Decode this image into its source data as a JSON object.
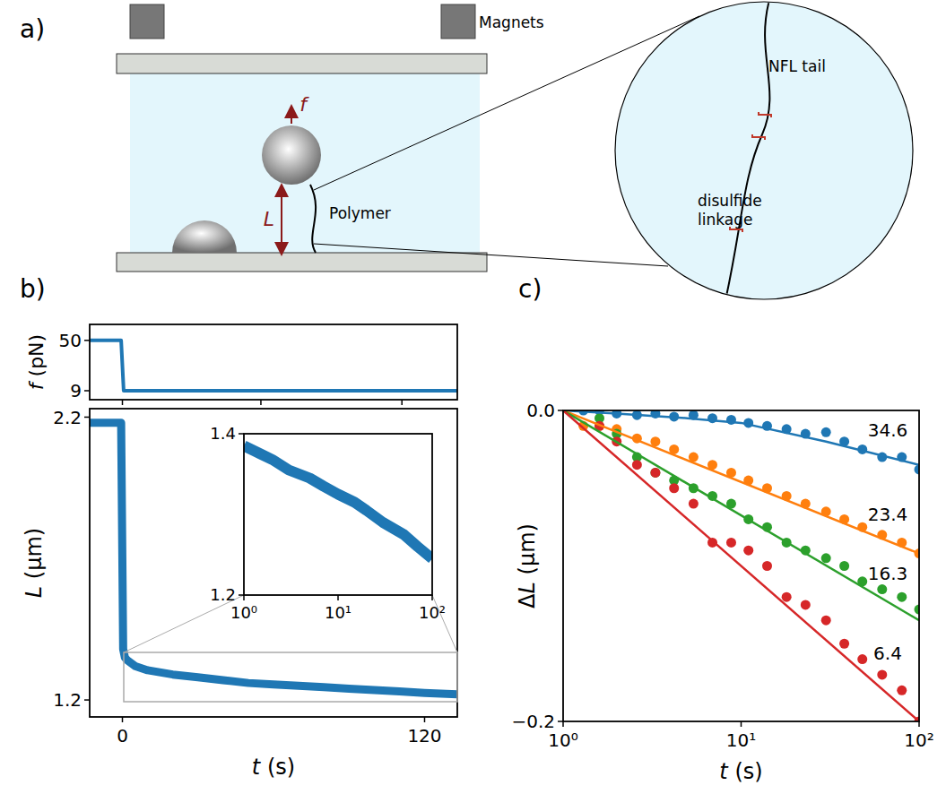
{
  "panels": [
    "a)",
    "b)",
    "c)"
  ],
  "diagram": {
    "magnets": "Magnets",
    "force": "f",
    "length": "L",
    "polymer": "Polymer",
    "tail": "NFL tail",
    "linkage": "disulfide linkage"
  },
  "chart_data": [
    {
      "type": "line",
      "y_label": "f (pN)",
      "xlim": [
        -13,
        133
      ],
      "ylim": [
        1.7,
        63
      ],
      "xticks": [
        0,
        55,
        111
      ],
      "yticks": [
        9,
        50
      ],
      "tick_labels": "y",
      "x": [
        -13,
        -0.5,
        0.5,
        133
      ],
      "series": [
        {
          "color": "#1f77b4",
          "values": [
            50,
            50,
            9,
            9
          ]
        }
      ]
    },
    {
      "type": "line",
      "x_label": "t (s)",
      "y_label": "L (µm)",
      "xlim": [
        -13,
        133
      ],
      "ylim": [
        1.14,
        2.23
      ],
      "xticks": [
        0,
        120
      ],
      "yticks": [
        1.2,
        2.2
      ],
      "x": [
        -13,
        -0.5,
        0.3,
        1,
        2,
        5,
        10,
        20,
        30,
        40,
        50,
        60,
        70,
        80,
        90,
        100,
        110,
        120,
        133
      ],
      "series": [
        {
          "color": "#1f77b4",
          "values": [
            2.18,
            2.18,
            1.38,
            1.35,
            1.34,
            1.32,
            1.305,
            1.29,
            1.28,
            1.27,
            1.26,
            1.255,
            1.25,
            1.245,
            1.24,
            1.235,
            1.23,
            1.225,
            1.22
          ]
        }
      ]
    },
    {
      "type": "line",
      "log": "x",
      "xlim": [
        1,
        100
      ],
      "ylim": [
        1.2,
        1.4
      ],
      "xticks": [
        {
          "value": 1,
          "label": "10⁰"
        },
        {
          "value": 10,
          "label": "10¹"
        },
        {
          "value": 100,
          "label": "10²"
        }
      ],
      "yticks": [
        1.2,
        1.4
      ],
      "x": [
        1,
        1.5,
        2,
        3,
        5,
        7,
        10,
        15,
        20,
        30,
        50,
        70,
        100
      ],
      "series": [
        {
          "color": "#1f77b4",
          "values": [
            1.385,
            1.375,
            1.368,
            1.355,
            1.345,
            1.335,
            1.325,
            1.315,
            1.305,
            1.29,
            1.275,
            1.26,
            1.245
          ]
        }
      ]
    },
    {
      "type": "scatter",
      "log": "x",
      "x_label": "t (s)",
      "y_label": "ΔL (µm)",
      "xlim": [
        1,
        100
      ],
      "ylim": [
        -0.2,
        0
      ],
      "xticks": [
        {
          "value": 1,
          "label": "10⁰"
        },
        {
          "value": 10,
          "label": "10¹"
        },
        {
          "value": 100,
          "label": "10²"
        }
      ],
      "yticks": [
        {
          "value": -0.2,
          "label": "−0.2"
        },
        {
          "value": 0,
          "label": "0.0"
        }
      ],
      "series": [
        {
          "name": "34.6",
          "type": "scatter",
          "marker": "circle",
          "color": "#1f77b4",
          "x": [
            1.3,
            1.6,
            2,
            2.6,
            3.3,
            4.2,
            5.4,
            6.9,
            8.8,
            11,
            14,
            18,
            23,
            30,
            38,
            48,
            62,
            80,
            100
          ],
          "values": [
            0,
            0,
            -0.002,
            -0.003,
            -0.002,
            -0.004,
            -0.003,
            -0.005,
            -0.006,
            -0.008,
            -0.01,
            -0.012,
            -0.015,
            -0.014,
            -0.02,
            -0.025,
            -0.03,
            -0.03,
            -0.038
          ]
        },
        {
          "name": "23.4",
          "type": "scatter",
          "marker": "circle",
          "color": "#ff7f0e",
          "x": [
            1.3,
            1.6,
            2,
            2.6,
            3.3,
            4.2,
            5.4,
            6.9,
            8.8,
            11,
            14,
            18,
            23,
            30,
            38,
            48,
            62,
            80,
            100
          ],
          "values": [
            -0.01,
            -0.01,
            -0.012,
            -0.018,
            -0.02,
            -0.025,
            -0.03,
            -0.035,
            -0.04,
            -0.045,
            -0.05,
            -0.055,
            -0.06,
            -0.065,
            -0.07,
            -0.075,
            -0.08,
            -0.085,
            -0.092
          ]
        },
        {
          "name": "16.3",
          "type": "scatter",
          "marker": "circle",
          "color": "#2ca02c",
          "x": [
            1.6,
            2,
            2.6,
            3.3,
            4.2,
            5.4,
            6.9,
            8.8,
            11,
            14,
            18,
            23,
            30,
            38,
            48,
            62,
            80,
            100
          ],
          "values": [
            -0.005,
            -0.015,
            -0.03,
            -0.04,
            -0.045,
            -0.05,
            -0.055,
            -0.06,
            -0.07,
            -0.075,
            -0.085,
            -0.09,
            -0.095,
            -0.1,
            -0.11,
            -0.115,
            -0.12,
            -0.128
          ]
        },
        {
          "name": "6.4",
          "type": "scatter",
          "marker": "circle",
          "color": "#d62728",
          "x": [
            1.6,
            2,
            2.6,
            3.3,
            4.2,
            5.4,
            6.9,
            8.8,
            11,
            14,
            18,
            23,
            30,
            38,
            48,
            62,
            80,
            100
          ],
          "values": [
            -0.01,
            -0.02,
            -0.035,
            -0.04,
            -0.05,
            -0.06,
            -0.085,
            -0.085,
            -0.09,
            -0.1,
            -0.12,
            -0.125,
            -0.135,
            -0.15,
            -0.16,
            -0.17,
            -0.18,
            -0.2
          ]
        },
        {
          "type": "line",
          "color": "#1f77b4",
          "x": [
            1,
            2,
            5,
            10,
            30,
            100
          ],
          "values": [
            0,
            -0.002,
            -0.005,
            -0.008,
            -0.02,
            -0.035
          ]
        },
        {
          "type": "line",
          "color": "#ff7f0e",
          "x": [
            1,
            100
          ],
          "values": [
            0,
            -0.092
          ]
        },
        {
          "type": "line",
          "color": "#2ca02c",
          "x": [
            1,
            100
          ],
          "values": [
            0,
            -0.135
          ]
        },
        {
          "type": "line",
          "color": "#d62728",
          "x": [
            1,
            100
          ],
          "values": [
            0,
            -0.2
          ]
        }
      ]
    }
  ]
}
